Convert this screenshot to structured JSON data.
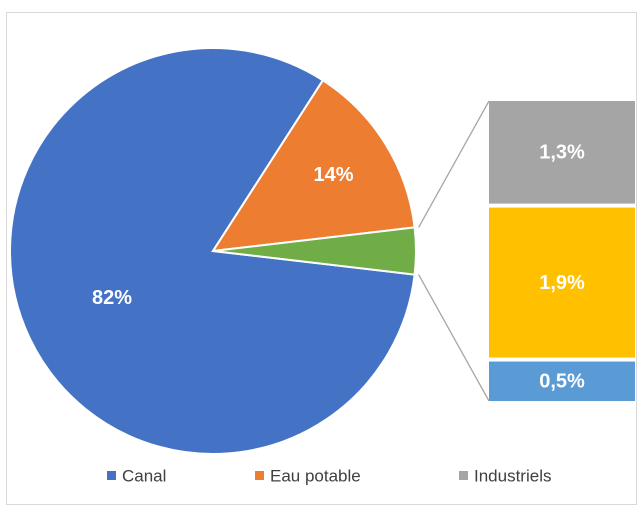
{
  "chart_data": {
    "type": "pie-of-bar",
    "categories": [
      "Canal",
      "Eau potable",
      null
    ],
    "values": [
      82,
      14,
      3.7
    ],
    "value_labels": [
      "82%",
      "14%",
      null
    ],
    "colors": [
      "#4472c4",
      "#ed7d31",
      "#70ad47"
    ],
    "breakdown": {
      "values": [
        1.3,
        1.9,
        0.5
      ],
      "value_labels": [
        "1,3%",
        "1,9%",
        "0,5%"
      ],
      "colors": [
        "#a5a5a5",
        "#ffc000",
        "#5b9bd5"
      ]
    },
    "legend": [
      {
        "name": "Canal",
        "color": "#4472c4"
      },
      {
        "name": "Eau potable",
        "color": "#ed7d31"
      },
      {
        "name": "Industriels",
        "color": "#a5a5a5"
      }
    ]
  }
}
